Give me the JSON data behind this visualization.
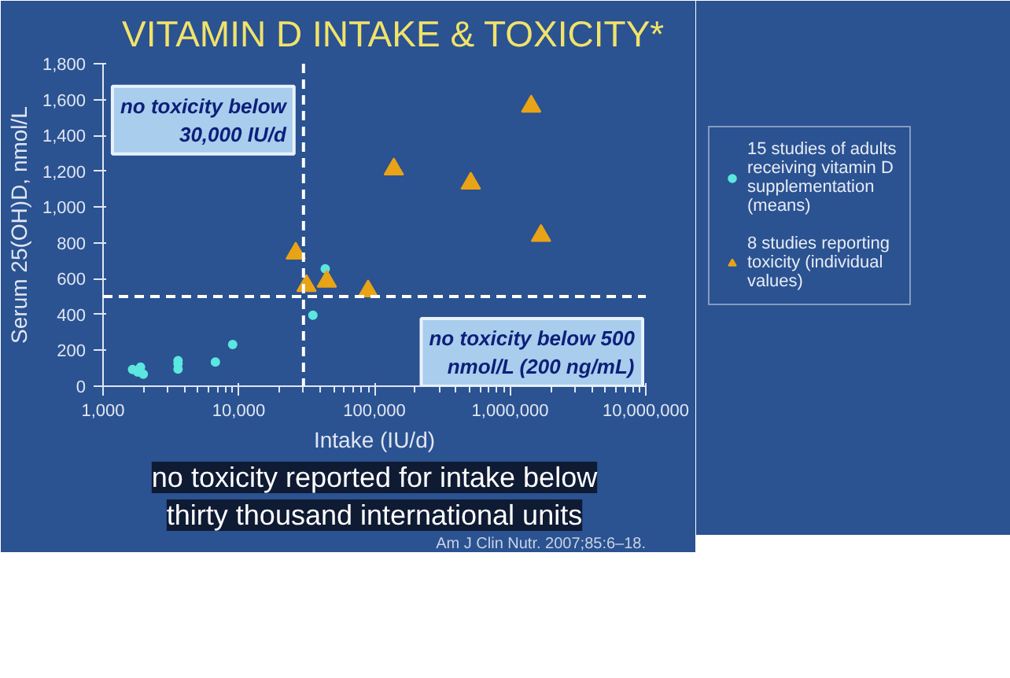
{
  "chart_data": {
    "type": "scatter",
    "title": "VITAMIN D INTAKE & TOXICITY*",
    "xlabel": "Intake (IU/d)",
    "ylabel": "Serum 25(OH)D, nmol/L",
    "log": "x",
    "xlim": [
      1000,
      10000000
    ],
    "xticks": [
      {
        "value": 1000,
        "label": "1,000"
      },
      {
        "value": 10000,
        "label": "10,000"
      },
      {
        "value": 100000,
        "label": "100,000"
      },
      {
        "value": 1000000,
        "label": "1,000,000"
      },
      {
        "value": 10000000,
        "label": "10,000,000"
      }
    ],
    "ylim": [
      0,
      1800
    ],
    "yticks": [
      0,
      200,
      400,
      600,
      800,
      {
        "value": 1000,
        "label": "1,000"
      },
      {
        "value": 1200,
        "label": "1,200"
      },
      {
        "value": 1400,
        "label": "1,400"
      },
      {
        "value": 1600,
        "label": "1,600"
      },
      {
        "value": 1800,
        "label": "1,800"
      }
    ],
    "grid": false,
    "legend": "right",
    "series": [
      {
        "name": "15 studies of adults receiving vitamin D supplementation (means)",
        "color": "#5ce6e0",
        "marker": "circle",
        "x": [
          1650,
          1890,
          1980,
          1800,
          3570,
          3570,
          3570,
          6730,
          9020,
          35200,
          43400
        ],
        "values": [
          93,
          107,
          67,
          79,
          143,
          95,
          125,
          135,
          233,
          396,
          655
        ]
      },
      {
        "name": "8 studies reporting toxicity (individual values)",
        "color": "#e8a317",
        "marker": "triangle",
        "x": [
          26300,
          31600,
          44600,
          89800,
          139000,
          513000,
          1430000,
          1690000
        ],
        "values": [
          742,
          560,
          585,
          531,
          1211,
          1132,
          1562,
          840
        ]
      }
    ],
    "ref_lines": [
      {
        "axis": "x",
        "value": 30000,
        "label": "no toxicity below 30,000 IU/d",
        "color": "#ffffff",
        "line_style": "dashed"
      },
      {
        "axis": "y",
        "value": 500,
        "label": "no toxicity below 500 nmol/L (200 ng/mL)",
        "color": "#ffffff",
        "line_style": "dashed"
      }
    ],
    "annotations": [
      "no toxicity reported for intake below",
      "thirty thousand international units",
      "Am J Clin Nutr. 2007;85:6–18."
    ]
  }
}
